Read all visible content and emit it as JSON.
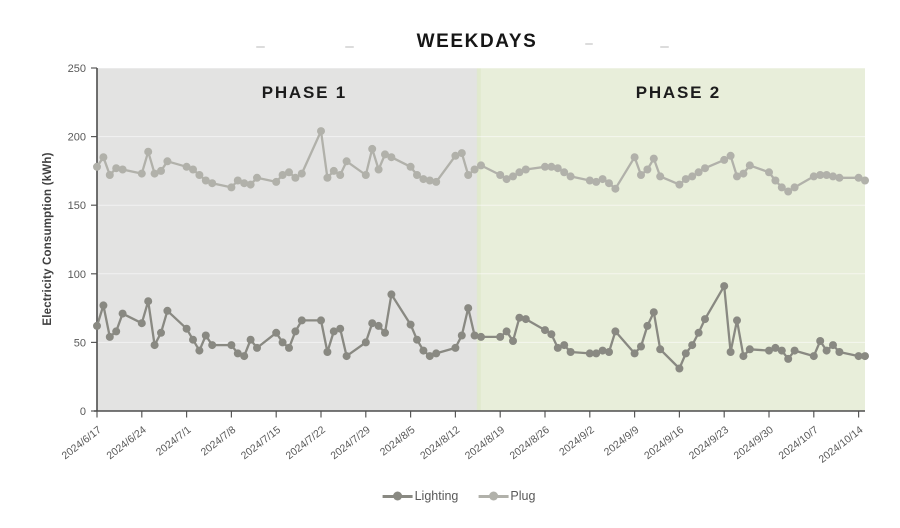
{
  "title": "WEEKDAYS",
  "chart_data": {
    "type": "line",
    "title": "WEEKDAYS",
    "xlabel": "",
    "ylabel": "Electricity Consumption (kWh)",
    "ylim": [
      0,
      250
    ],
    "yticks": [
      0,
      50,
      100,
      150,
      200,
      250
    ],
    "grid": "horizontal",
    "legend_position": "bottom",
    "x_type": "date_weekdays_only",
    "x_tick_labels": [
      "2024/6/17",
      "2024/6/24",
      "2024/7/1",
      "2024/7/8",
      "2024/7/15",
      "2024/7/22",
      "2024/7/29",
      "2024/8/5",
      "2024/8/12",
      "2024/8/19",
      "2024/8/26",
      "2024/9/2",
      "2024/9/9",
      "2024/9/16",
      "2024/9/23",
      "2024/9/30",
      "2024/10/7",
      "2024/10/14"
    ],
    "x": [
      "2024/6/17",
      "2024/6/18",
      "2024/6/19",
      "2024/6/20",
      "2024/6/21",
      "2024/6/24",
      "2024/6/25",
      "2024/6/26",
      "2024/6/27",
      "2024/6/28",
      "2024/7/1",
      "2024/7/2",
      "2024/7/3",
      "2024/7/4",
      "2024/7/5",
      "2024/7/8",
      "2024/7/9",
      "2024/7/10",
      "2024/7/11",
      "2024/7/12",
      "2024/7/15",
      "2024/7/16",
      "2024/7/17",
      "2024/7/18",
      "2024/7/19",
      "2024/7/22",
      "2024/7/23",
      "2024/7/24",
      "2024/7/25",
      "2024/7/26",
      "2024/7/29",
      "2024/7/30",
      "2024/7/31",
      "2024/8/1",
      "2024/8/2",
      "2024/8/5",
      "2024/8/6",
      "2024/8/7",
      "2024/8/8",
      "2024/8/9",
      "2024/8/12",
      "2024/8/13",
      "2024/8/14",
      "2024/8/15",
      "2024/8/16",
      "2024/8/19",
      "2024/8/20",
      "2024/8/21",
      "2024/8/22",
      "2024/8/23",
      "2024/8/26",
      "2024/8/27",
      "2024/8/28",
      "2024/8/29",
      "2024/8/30",
      "2024/9/2",
      "2024/9/3",
      "2024/9/4",
      "2024/9/5",
      "2024/9/6",
      "2024/9/9",
      "2024/9/10",
      "2024/9/11",
      "2024/9/12",
      "2024/9/13",
      "2024/9/16",
      "2024/9/17",
      "2024/9/18",
      "2024/9/19",
      "2024/9/20",
      "2024/9/23",
      "2024/9/24",
      "2024/9/25",
      "2024/9/26",
      "2024/9/27",
      "2024/9/30",
      "2024/10/1",
      "2024/10/2",
      "2024/10/3",
      "2024/10/4",
      "2024/10/7",
      "2024/10/8",
      "2024/10/9",
      "2024/10/10",
      "2024/10/11",
      "2024/10/14",
      "2024/10/15"
    ],
    "series": [
      {
        "name": "Lighting",
        "color": "#898982",
        "values": [
          62,
          77,
          54,
          58,
          71,
          64,
          80,
          48,
          57,
          73,
          60,
          52,
          44,
          55,
          48,
          48,
          42,
          40,
          52,
          46,
          57,
          50,
          46,
          58,
          66,
          66,
          43,
          58,
          60,
          40,
          50,
          64,
          62,
          57,
          85,
          63,
          52,
          44,
          40,
          42,
          46,
          55,
          75,
          55,
          54,
          54,
          58,
          51,
          68,
          67,
          59,
          56,
          46,
          48,
          43,
          42,
          42,
          44,
          43,
          58,
          42,
          47,
          62,
          72,
          45,
          31,
          42,
          48,
          57,
          67,
          91,
          43,
          66,
          40,
          45,
          44,
          46,
          44,
          38,
          44,
          40,
          51,
          44,
          48,
          43,
          40,
          40
        ]
      },
      {
        "name": "Plug",
        "color": "#b1b1aa",
        "values": [
          178,
          185,
          172,
          177,
          176,
          173,
          189,
          173,
          175,
          182,
          178,
          176,
          172,
          168,
          166,
          163,
          168,
          166,
          165,
          170,
          167,
          172,
          174,
          170,
          173,
          204,
          170,
          175,
          172,
          182,
          172,
          191,
          176,
          187,
          185,
          178,
          172,
          169,
          168,
          167,
          186,
          188,
          172,
          176,
          179,
          172,
          169,
          171,
          174,
          176,
          178,
          178,
          177,
          174,
          171,
          168,
          167,
          169,
          166,
          162,
          185,
          172,
          176,
          184,
          171,
          165,
          169,
          171,
          174,
          177,
          183,
          186,
          171,
          173,
          179,
          174,
          168,
          163,
          160,
          163,
          171,
          172,
          172,
          171,
          170,
          170,
          168
        ]
      }
    ],
    "phases": [
      {
        "label": "PHASE 1",
        "start": "2024/6/17",
        "end": "2024/8/15",
        "background": "#e3e3e2"
      },
      {
        "label": "PHASE 2",
        "start": "2024/8/16",
        "end": "2024/10/15",
        "background": "#e8eeda"
      }
    ],
    "axis_color": "#4d4d4d",
    "tick_label_color": "#595959",
    "gridline_color": "rgba(255,255,255,0.55)"
  }
}
